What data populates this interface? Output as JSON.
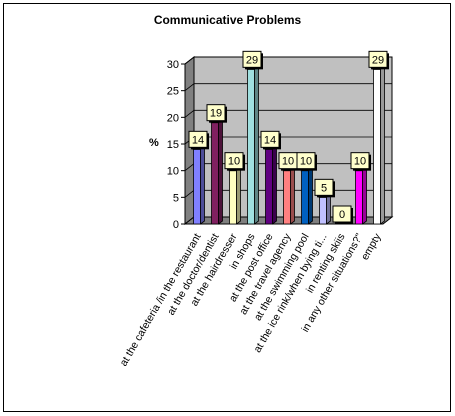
{
  "chart_data": {
    "type": "bar",
    "title": "Communicative Problems",
    "ylabel": "%",
    "xlabel": "",
    "ylim": [
      0,
      30
    ],
    "yticks": [
      0,
      5,
      10,
      15,
      20,
      25,
      30
    ],
    "grid": true,
    "categories": [
      "at the cafeteria /in the restaurant",
      "at the doctor/dentist",
      "at the hairdresser",
      "in shops",
      "at the post office",
      "at the travel agency",
      "at the swimming pool",
      "at the ice rink/when bying ti...",
      "in renting skiis",
      "in any other situations?\"",
      "empty"
    ],
    "values": [
      14,
      19,
      10,
      29,
      14,
      10,
      10,
      5,
      0,
      10,
      29
    ],
    "bar_colors": [
      "#8080ff",
      "#802060",
      "#ffffc0",
      "#a0e0e0",
      "#600080",
      "#ff8080",
      "#0060c0",
      "#c0c0ff",
      "#000080",
      "#ff00ff",
      "#ffffff"
    ],
    "colors": {
      "wall": "#c0c0c0",
      "floor": "#808080",
      "label_bg": "#ffffcc"
    }
  }
}
